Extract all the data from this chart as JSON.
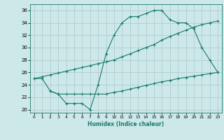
{
  "xlabel": "Humidex (Indice chaleur)",
  "xlim": [
    -0.5,
    23.5
  ],
  "ylim": [
    19.5,
    37
  ],
  "yticks": [
    20,
    22,
    24,
    26,
    28,
    30,
    32,
    34,
    36
  ],
  "xticks": [
    0,
    1,
    2,
    3,
    4,
    5,
    6,
    7,
    8,
    9,
    10,
    11,
    12,
    13,
    14,
    15,
    16,
    17,
    18,
    19,
    20,
    21,
    22,
    23
  ],
  "bg_color": "#cce8e8",
  "grid_color": "#b0cccc",
  "line_color": "#1a7a6a",
  "line1_x": [
    0,
    1,
    2,
    3,
    4,
    5,
    6,
    7,
    8,
    9,
    10,
    11,
    12,
    13,
    14,
    15,
    16,
    17,
    18,
    19,
    20,
    21,
    22,
    23
  ],
  "line1_y": [
    25.0,
    25.0,
    23.0,
    22.5,
    21.0,
    21.0,
    21.0,
    20.0,
    24.0,
    29.0,
    32.0,
    34.0,
    35.0,
    35.0,
    35.5,
    36.0,
    36.0,
    34.5,
    34.0,
    34.0,
    33.0,
    30.0,
    28.0,
    26.0
  ],
  "line2_x": [
    0,
    1,
    2,
    3,
    4,
    5,
    6,
    7,
    8,
    9,
    10,
    11,
    12,
    13,
    14,
    15,
    16,
    17,
    18,
    19,
    20,
    21,
    22,
    23
  ],
  "line2_y": [
    25.0,
    25.3,
    25.6,
    25.9,
    26.2,
    26.5,
    26.8,
    27.1,
    27.4,
    27.7,
    28.0,
    28.5,
    29.0,
    29.5,
    30.0,
    30.5,
    31.2,
    31.8,
    32.3,
    32.8,
    33.3,
    33.7,
    34.0,
    34.3
  ],
  "line3_x": [
    2,
    3,
    4,
    5,
    6,
    7,
    8,
    9,
    10,
    11,
    12,
    13,
    14,
    15,
    16,
    17,
    18,
    19,
    20,
    21,
    22,
    23
  ],
  "line3_y": [
    23.0,
    22.5,
    22.5,
    22.5,
    22.5,
    22.5,
    22.5,
    22.5,
    22.8,
    23.0,
    23.3,
    23.6,
    23.9,
    24.2,
    24.5,
    24.7,
    25.0,
    25.2,
    25.4,
    25.6,
    25.8,
    26.0
  ]
}
